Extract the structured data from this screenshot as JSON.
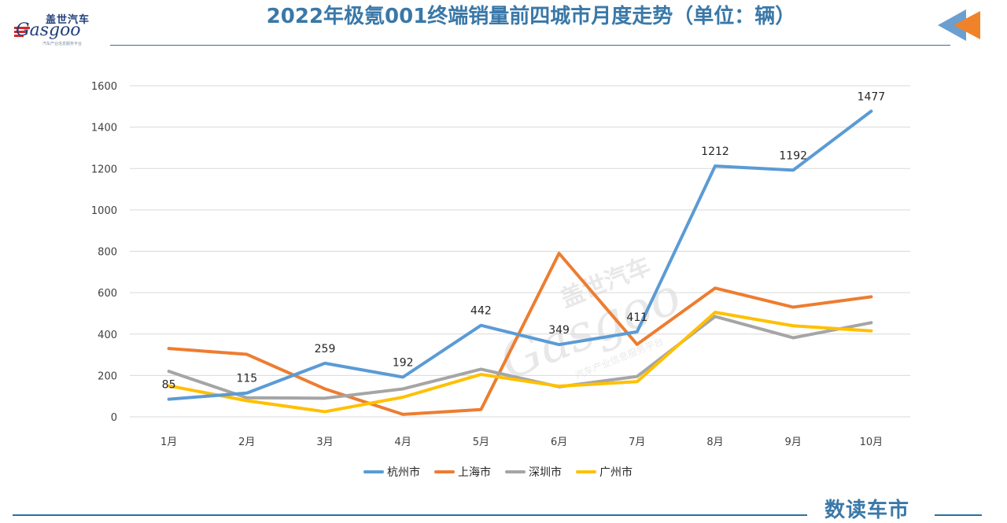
{
  "header": {
    "title": "2022年极氪001终端销量前四城市月度走势（单位：辆）"
  },
  "logo": {
    "cn": "盖世汽车",
    "en": "Gasgoo",
    "sub": "汽车产业信息服务平台"
  },
  "footer": {
    "brand": "数读车市"
  },
  "watermark": {
    "cn": "盖世汽车",
    "en": "Gasgoo",
    "sub": "汽车产业信息服务平台"
  },
  "colors": {
    "title": "#3a78a8",
    "rule": "#2f6f9f",
    "corner_blue": "#6a9fd0",
    "corner_orange": "#f0832a"
  },
  "chart_data": {
    "type": "line",
    "title": "",
    "xlabel": "",
    "ylabel": "",
    "ylim": [
      0,
      1600
    ],
    "yticks": [
      0,
      200,
      400,
      600,
      800,
      1000,
      1200,
      1400,
      1600
    ],
    "grid": true,
    "legend": "bottom",
    "categories": [
      "1月",
      "2月",
      "3月",
      "4月",
      "5月",
      "6月",
      "7月",
      "8月",
      "9月",
      "10月"
    ],
    "series": [
      {
        "name": "杭州市",
        "color": "#5b9bd5",
        "values": [
          85,
          115,
          259,
          192,
          442,
          349,
          411,
          1212,
          1192,
          1477
        ],
        "labeled": true
      },
      {
        "name": "上海市",
        "color": "#ed7d31",
        "values": [
          330,
          302,
          135,
          12,
          35,
          790,
          350,
          622,
          530,
          580
        ],
        "labeled": false
      },
      {
        "name": "深圳市",
        "color": "#a5a5a5",
        "values": [
          220,
          92,
          90,
          135,
          230,
          145,
          195,
          485,
          382,
          455
        ],
        "labeled": false
      },
      {
        "name": "广州市",
        "color": "#ffc000",
        "values": [
          150,
          78,
          25,
          95,
          205,
          148,
          170,
          505,
          440,
          415
        ],
        "labeled": false
      }
    ]
  }
}
